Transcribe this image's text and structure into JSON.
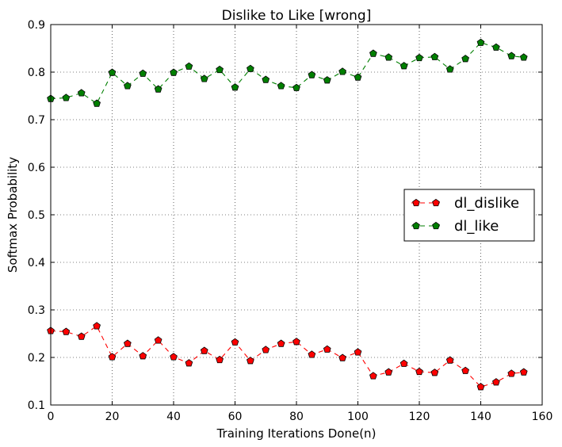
{
  "chart_data": {
    "type": "line",
    "title": "Dislike to Like [wrong]",
    "xlabel": "Training Iterations Done(n)",
    "ylabel": "Softmax Probability",
    "xlim": [
      0,
      160
    ],
    "ylim": [
      0.1,
      0.9
    ],
    "xticks": [
      0,
      20,
      40,
      60,
      80,
      100,
      120,
      140,
      160
    ],
    "yticks": [
      0.1,
      0.2,
      0.3,
      0.4,
      0.5,
      0.6,
      0.7,
      0.8,
      0.9
    ],
    "xtick_labels": [
      "0",
      "20",
      "40",
      "60",
      "80",
      "100",
      "120",
      "140",
      "160"
    ],
    "ytick_labels": [
      "0.1",
      "0.2",
      "0.3",
      "0.4",
      "0.5",
      "0.6",
      "0.7",
      "0.8",
      "0.9"
    ],
    "grid": true,
    "legend_position": "center-right",
    "x": [
      0,
      5,
      10,
      15,
      20,
      25,
      30,
      35,
      40,
      45,
      50,
      55,
      60,
      65,
      70,
      75,
      80,
      85,
      90,
      95,
      100,
      105,
      110,
      115,
      120,
      125,
      130,
      135,
      140,
      145,
      150,
      154
    ],
    "series": [
      {
        "name": "dl_dislike",
        "color": "#ff0000",
        "values": [
          0.256,
          0.254,
          0.244,
          0.266,
          0.201,
          0.229,
          0.203,
          0.236,
          0.201,
          0.188,
          0.214,
          0.195,
          0.232,
          0.193,
          0.216,
          0.229,
          0.233,
          0.206,
          0.217,
          0.199,
          0.211,
          0.161,
          0.169,
          0.187,
          0.17,
          0.168,
          0.194,
          0.172,
          0.138,
          0.148,
          0.166,
          0.169
        ]
      },
      {
        "name": "dl_like",
        "color": "#007f00",
        "values": [
          0.744,
          0.746,
          0.756,
          0.734,
          0.799,
          0.771,
          0.797,
          0.764,
          0.799,
          0.812,
          0.786,
          0.805,
          0.768,
          0.807,
          0.784,
          0.771,
          0.767,
          0.794,
          0.783,
          0.801,
          0.789,
          0.839,
          0.831,
          0.813,
          0.83,
          0.832,
          0.806,
          0.828,
          0.862,
          0.852,
          0.834,
          0.831
        ]
      }
    ]
  }
}
